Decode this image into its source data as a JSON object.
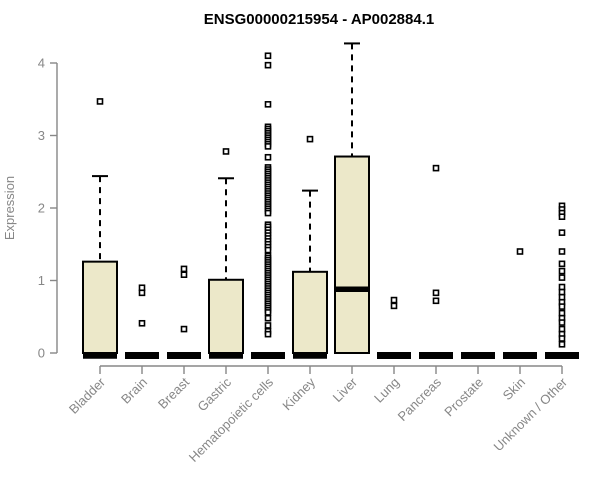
{
  "page": {
    "background": "#ffffff"
  },
  "chart_data": {
    "type": "boxplot",
    "title": "ENSG00000215954 - AP002884.1",
    "xlabel": "",
    "ylabel": "Expression",
    "ylim": [
      0,
      4.3
    ],
    "yticks": [
      0,
      1,
      2,
      3,
      4
    ],
    "grid": false,
    "legend": "none",
    "axis_color": "#878787",
    "box_fill": "#ece8c9",
    "box_stroke": "#000000",
    "categories": [
      "Bladder",
      "Brain",
      "Breast",
      "Gastric",
      "Hematopoietic cells",
      "Kidney",
      "Liver",
      "Lung",
      "Pancreas",
      "Prostate",
      "Skin",
      "Unknown / Other"
    ],
    "series": [
      {
        "label": "Bladder",
        "whisker_low": 0,
        "q1": 0,
        "median": 0,
        "q3": 1.26,
        "whisker_high": 2.44,
        "outliers": [
          3.47
        ]
      },
      {
        "label": "Brain",
        "whisker_low": 0,
        "q1": 0,
        "median": 0,
        "q3": 0,
        "whisker_high": 0,
        "outliers": [
          0.9,
          0.83,
          0.41
        ]
      },
      {
        "label": "Breast",
        "whisker_low": 0,
        "q1": 0,
        "median": 0,
        "q3": 0,
        "whisker_high": 0,
        "outliers": [
          1.16,
          1.08,
          0.33
        ]
      },
      {
        "label": "Gastric",
        "whisker_low": 0,
        "q1": 0,
        "median": 0,
        "q3": 1.01,
        "whisker_high": 2.41,
        "outliers": [
          2.78
        ]
      },
      {
        "label": "Hematopoietic cells",
        "whisker_low": 0,
        "q1": 0,
        "median": 0,
        "q3": 0,
        "whisker_high": 0,
        "outliers": [
          4.1,
          3.97,
          3.43,
          3.12,
          3.09,
          3.06,
          3.03,
          3.0,
          2.97,
          2.94,
          2.91,
          2.88,
          2.85,
          2.7,
          2.56,
          2.53,
          2.5,
          2.47,
          2.44,
          2.41,
          2.38,
          2.35,
          2.32,
          2.29,
          2.26,
          2.23,
          2.2,
          2.17,
          2.14,
          2.11,
          2.08,
          2.05,
          2.02,
          1.99,
          1.96,
          1.93,
          1.77,
          1.74,
          1.7,
          1.66,
          1.62,
          1.58,
          1.54,
          1.5,
          1.46,
          1.42,
          1.34,
          1.31,
          1.28,
          1.25,
          1.22,
          1.19,
          1.16,
          1.13,
          1.1,
          1.07,
          1.04,
          1.01,
          0.98,
          0.95,
          0.92,
          0.89,
          0.86,
          0.83,
          0.8,
          0.77,
          0.74,
          0.71,
          0.68,
          0.65,
          0.62,
          0.59,
          0.56,
          0.48,
          0.38,
          0.3,
          0.26
        ]
      },
      {
        "label": "Kidney",
        "whisker_low": 0,
        "q1": 0,
        "median": 0,
        "q3": 1.12,
        "whisker_high": 2.24,
        "outliers": [
          2.95
        ]
      },
      {
        "label": "Liver",
        "whisker_low": 0,
        "q1": 0,
        "median": 0.88,
        "q3": 2.71,
        "whisker_high": 4.27,
        "outliers": []
      },
      {
        "label": "Lung",
        "whisker_low": 0,
        "q1": 0,
        "median": 0,
        "q3": 0,
        "whisker_high": 0,
        "outliers": [
          0.73,
          0.65
        ]
      },
      {
        "label": "Pancreas",
        "whisker_low": 0,
        "q1": 0,
        "median": 0,
        "q3": 0,
        "whisker_high": 0,
        "outliers": [
          2.55,
          0.83,
          0.72
        ]
      },
      {
        "label": "Prostate",
        "whisker_low": 0,
        "q1": 0,
        "median": 0,
        "q3": 0,
        "whisker_high": 0,
        "outliers": []
      },
      {
        "label": "Skin",
        "whisker_low": 0,
        "q1": 0,
        "median": 0,
        "q3": 0,
        "whisker_high": 0,
        "outliers": [
          1.4
        ]
      },
      {
        "label": "Unknown / Other",
        "whisker_low": 0,
        "q1": 0,
        "median": 0,
        "q3": 0,
        "whisker_high": 0,
        "outliers": [
          2.03,
          1.98,
          1.93,
          1.88,
          1.66,
          1.4,
          1.23,
          1.13,
          1.04,
          0.91,
          0.84,
          0.77,
          0.7,
          0.64,
          0.55,
          0.48,
          0.42,
          0.33,
          0.26,
          0.2,
          0.12
        ]
      }
    ]
  }
}
